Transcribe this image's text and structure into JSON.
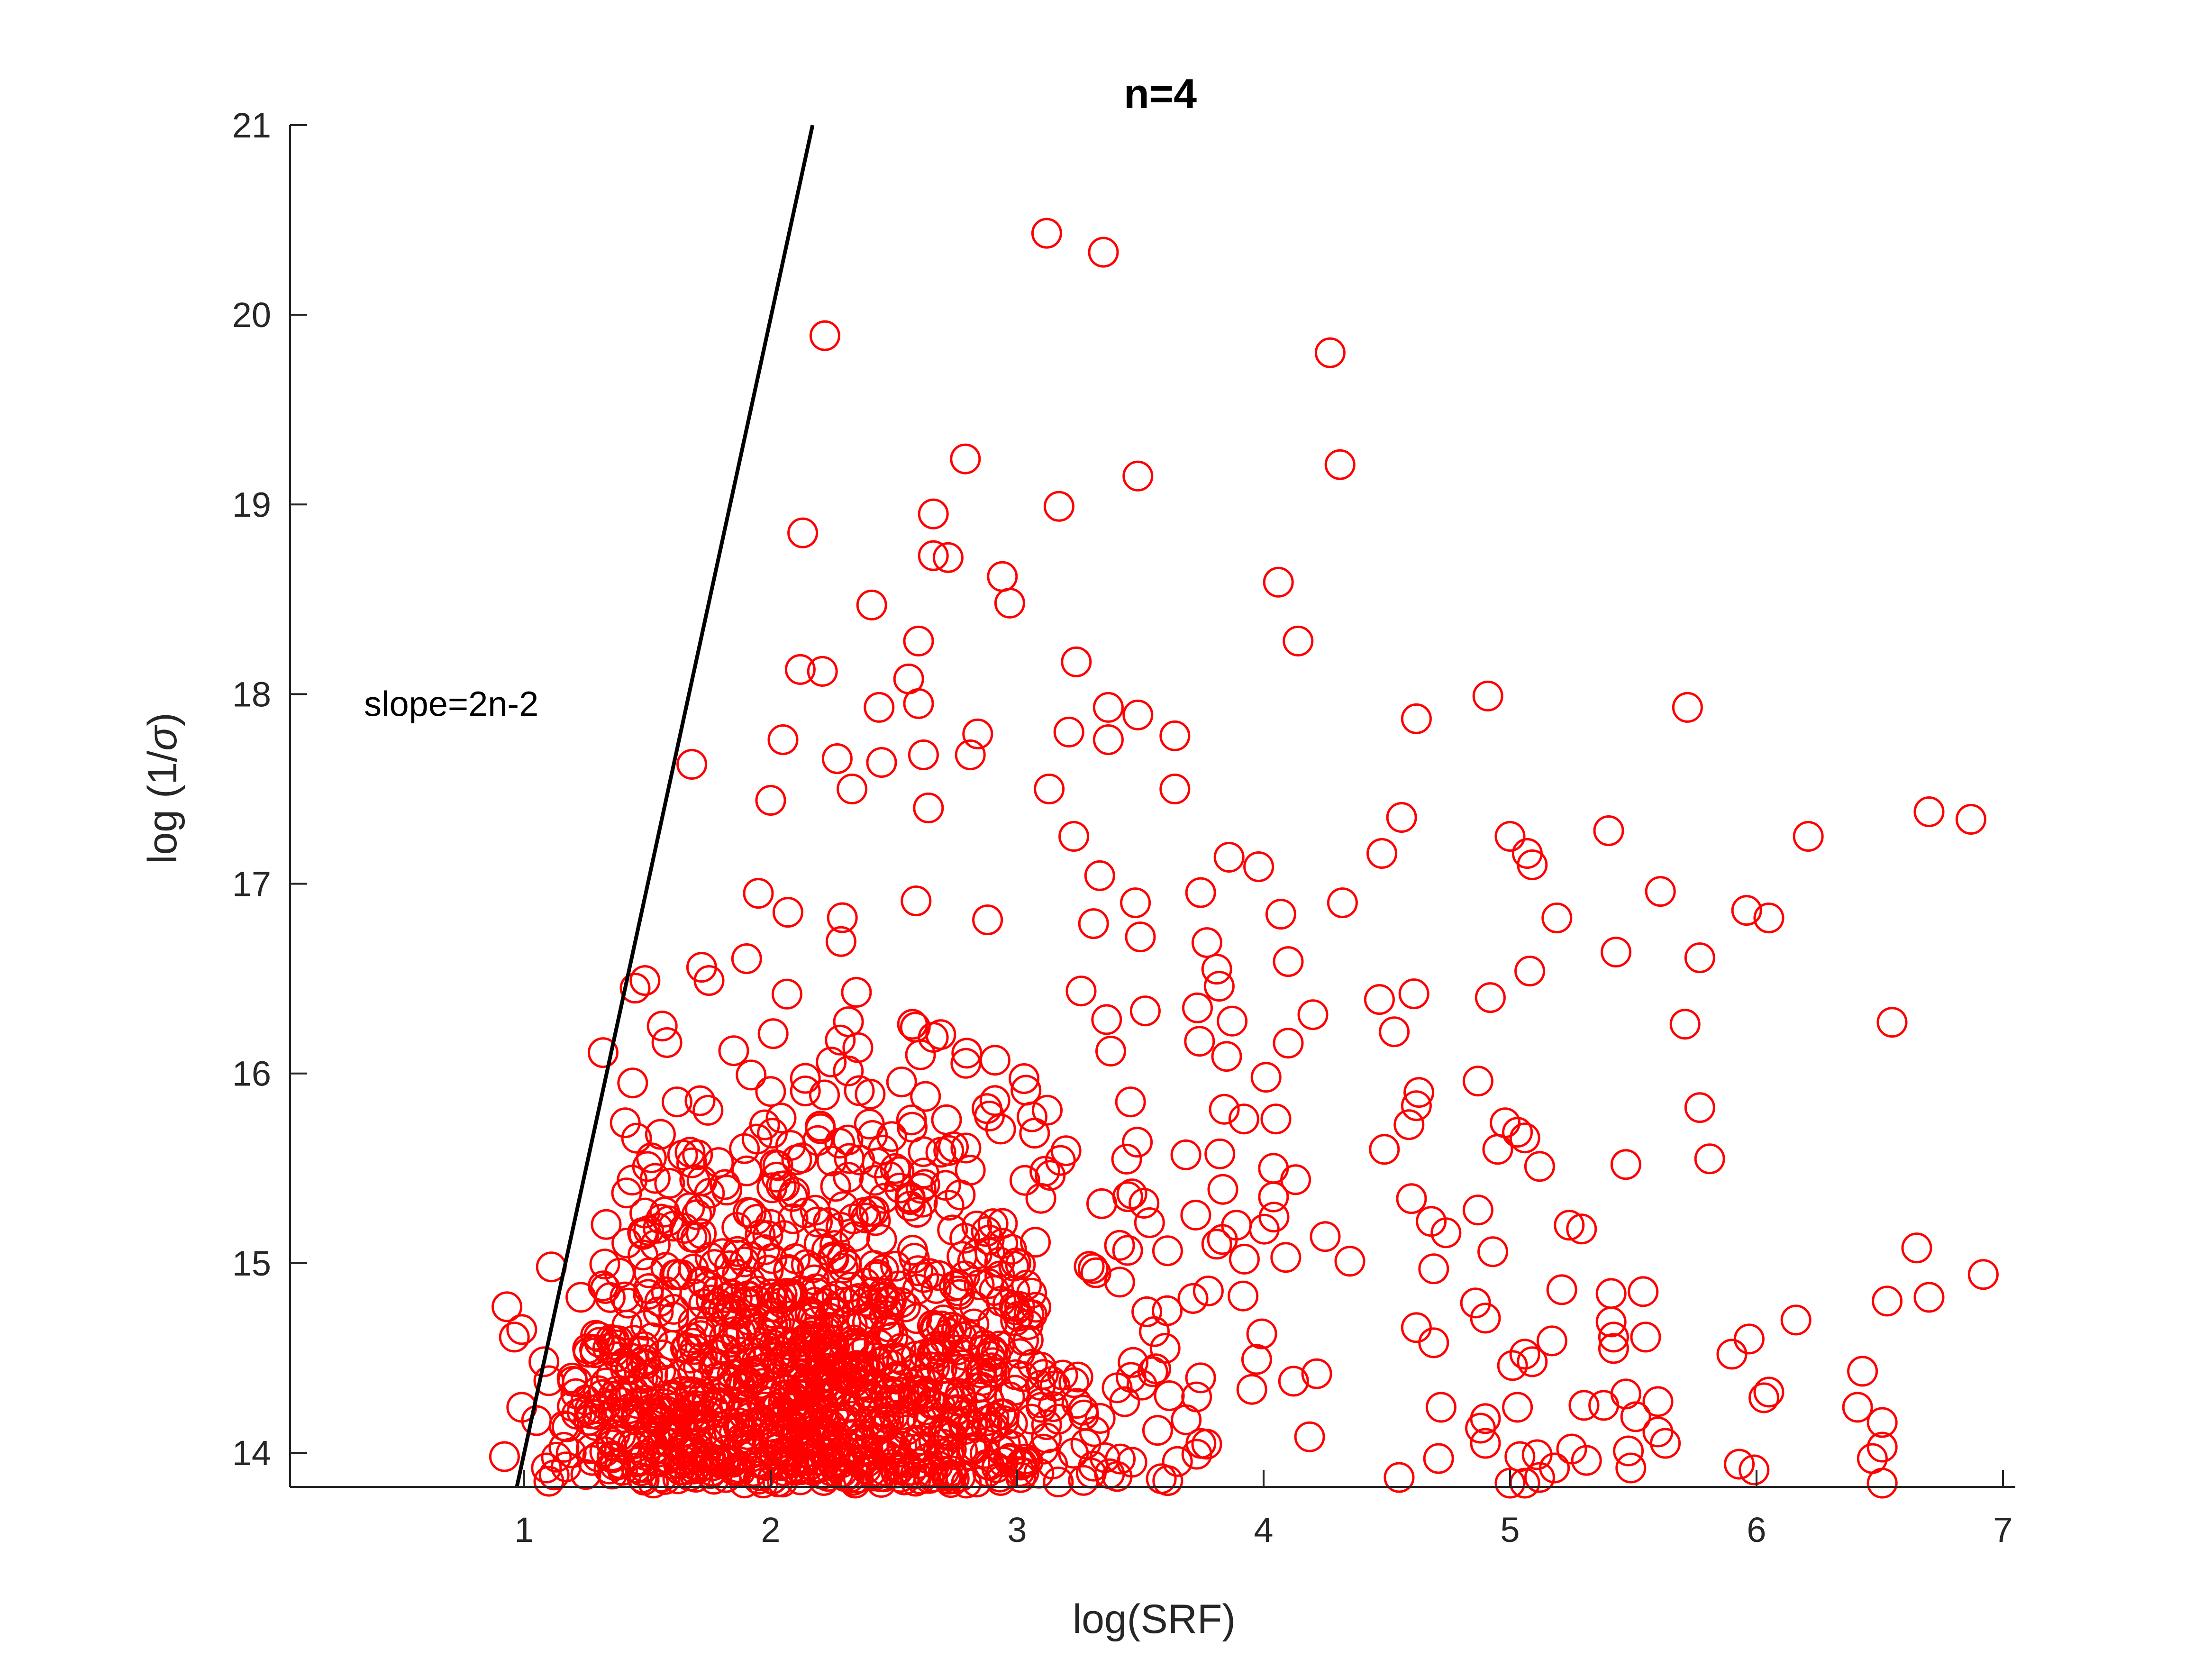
{
  "chart_data": {
    "type": "scatter",
    "title": "n=4",
    "xlabel": "log(SRF)",
    "ylabel_main": "log (1/",
    "ylabel_symbol": "σ",
    "ylabel_close": ")",
    "xlim": [
      0.05,
      7.05
    ],
    "ylim": [
      13.82,
      21
    ],
    "x_ticks": [
      1,
      2,
      3,
      4,
      5,
      6,
      7
    ],
    "y_ticks": [
      14,
      15,
      16,
      17,
      18,
      19,
      20,
      21
    ],
    "grid": false,
    "marker": "open-circle",
    "marker_color": "#ff0000",
    "reference_line": {
      "x": [
        0.97,
        2.17
      ],
      "y": [
        13.82,
        21
      ],
      "color": "#000000"
    },
    "annotation": {
      "text": "slope=2n-2",
      "x": 0.35,
      "y": 17.95
    },
    "sampled_point_count": 1400,
    "points": [
      [
        3.12,
        20.43
      ],
      [
        3.35,
        20.33
      ],
      [
        2.22,
        19.89
      ],
      [
        4.27,
        19.8
      ],
      [
        4.31,
        19.21
      ],
      [
        2.79,
        19.24
      ],
      [
        3.17,
        18.99
      ],
      [
        3.49,
        19.15
      ],
      [
        2.66,
        18.95
      ],
      [
        2.13,
        18.85
      ],
      [
        2.66,
        18.73
      ],
      [
        2.72,
        18.72
      ],
      [
        2.94,
        18.62
      ],
      [
        2.97,
        18.48
      ],
      [
        4.06,
        18.59
      ],
      [
        4.14,
        18.28
      ],
      [
        2.41,
        18.47
      ],
      [
        2.6,
        18.28
      ],
      [
        3.24,
        18.17
      ],
      [
        2.12,
        18.13
      ],
      [
        2.21,
        18.12
      ],
      [
        2.56,
        18.08
      ],
      [
        4.91,
        17.99
      ],
      [
        5.72,
        17.93
      ],
      [
        3.37,
        17.93
      ],
      [
        3.49,
        17.89
      ],
      [
        2.6,
        17.95
      ],
      [
        2.44,
        17.93
      ],
      [
        4.62,
        17.87
      ],
      [
        2.05,
        17.76
      ],
      [
        3.21,
        17.8
      ],
      [
        3.37,
        17.76
      ],
      [
        3.64,
        17.78
      ],
      [
        2.84,
        17.79
      ],
      [
        2.81,
        17.68
      ],
      [
        1.68,
        17.63
      ],
      [
        2.62,
        17.68
      ],
      [
        2.27,
        17.66
      ],
      [
        2.45,
        17.64
      ],
      [
        3.13,
        17.5
      ],
      [
        3.64,
        17.5
      ],
      [
        2.33,
        17.5
      ],
      [
        2.0,
        17.44
      ],
      [
        6.7,
        17.38
      ],
      [
        6.87,
        17.34
      ],
      [
        4.56,
        17.35
      ],
      [
        2.64,
        17.4
      ],
      [
        5.4,
        17.28
      ],
      [
        6.21,
        17.25
      ],
      [
        5.0,
        17.25
      ],
      [
        3.23,
        17.25
      ],
      [
        4.48,
        17.16
      ],
      [
        5.07,
        17.16
      ],
      [
        5.09,
        17.1
      ],
      [
        3.86,
        17.14
      ],
      [
        3.98,
        17.09
      ],
      [
        4.32,
        16.9
      ],
      [
        5.61,
        16.96
      ],
      [
        5.96,
        16.86
      ],
      [
        6.05,
        16.82
      ],
      [
        5.19,
        16.82
      ],
      [
        3.48,
        16.9
      ],
      [
        2.59,
        16.91
      ],
      [
        2.88,
        16.81
      ],
      [
        3.31,
        16.79
      ],
      [
        1.95,
        16.95
      ],
      [
        2.07,
        16.85
      ],
      [
        4.07,
        16.84
      ],
      [
        3.5,
        16.72
      ],
      [
        3.77,
        16.69
      ],
      [
        3.81,
        16.55
      ],
      [
        4.1,
        16.59
      ],
      [
        5.08,
        16.54
      ],
      [
        5.43,
        16.64
      ],
      [
        5.77,
        16.61
      ],
      [
        4.61,
        16.42
      ],
      [
        4.92,
        16.4
      ],
      [
        4.47,
        16.39
      ],
      [
        1.45,
        16.45
      ],
      [
        1.49,
        16.49
      ],
      [
        1.72,
        16.56
      ],
      [
        1.75,
        16.49
      ],
      [
        3.82,
        16.46
      ],
      [
        3.52,
        16.33
      ],
      [
        4.2,
        16.31
      ],
      [
        4.53,
        16.22
      ],
      [
        5.71,
        16.26
      ],
      [
        6.55,
        16.27
      ],
      [
        1.56,
        16.25
      ],
      [
        1.32,
        16.11
      ],
      [
        4.1,
        16.16
      ],
      [
        3.74,
        16.17
      ],
      [
        3.85,
        16.09
      ],
      [
        2.01,
        16.21
      ],
      [
        1.85,
        16.12
      ],
      [
        1.62,
        15.85
      ],
      [
        4.01,
        15.98
      ],
      [
        4.87,
        15.96
      ],
      [
        4.63,
        15.9
      ],
      [
        4.62,
        15.83
      ],
      [
        5.77,
        15.82
      ],
      [
        4.59,
        15.73
      ],
      [
        4.98,
        15.74
      ],
      [
        5.03,
        15.69
      ],
      [
        5.06,
        15.66
      ],
      [
        4.49,
        15.6
      ],
      [
        4.95,
        15.6
      ],
      [
        5.81,
        15.55
      ],
      [
        5.47,
        15.52
      ],
      [
        5.12,
        15.51
      ],
      [
        1.44,
        15.95
      ],
      [
        1.41,
        15.74
      ],
      [
        3.46,
        15.85
      ],
      [
        3.92,
        15.76
      ],
      [
        4.05,
        15.76
      ],
      [
        4.04,
        15.5
      ],
      [
        4.13,
        15.44
      ],
      [
        4.6,
        15.34
      ],
      [
        4.87,
        15.28
      ],
      [
        4.68,
        15.22
      ],
      [
        4.74,
        15.16
      ],
      [
        4.93,
        15.06
      ],
      [
        4.69,
        14.97
      ],
      [
        5.24,
        15.2
      ],
      [
        5.29,
        15.18
      ],
      [
        3.89,
        15.2
      ],
      [
        3.81,
        15.1
      ],
      [
        4.25,
        15.14
      ],
      [
        4.35,
        15.01
      ],
      [
        4.09,
        15.03
      ],
      [
        6.65,
        15.08
      ],
      [
        6.92,
        14.94
      ],
      [
        6.53,
        14.8
      ],
      [
        6.7,
        14.82
      ],
      [
        5.21,
        14.86
      ],
      [
        5.54,
        14.85
      ],
      [
        5.41,
        14.84
      ],
      [
        4.86,
        14.79
      ],
      [
        4.9,
        14.71
      ],
      [
        5.41,
        14.69
      ],
      [
        5.42,
        14.61
      ],
      [
        5.55,
        14.61
      ],
      [
        5.17,
        14.59
      ],
      [
        6.16,
        14.7
      ],
      [
        5.97,
        14.6
      ],
      [
        5.9,
        14.52
      ],
      [
        4.62,
        14.66
      ],
      [
        4.69,
        14.58
      ],
      [
        0.93,
        14.77
      ],
      [
        0.96,
        14.61
      ],
      [
        0.99,
        14.65
      ],
      [
        1.11,
        14.98
      ],
      [
        1.08,
        14.48
      ],
      [
        1.1,
        14.38
      ],
      [
        1.26,
        14.53
      ],
      [
        1.23,
        14.82
      ],
      [
        1.32,
        14.88
      ],
      [
        5.01,
        14.46
      ],
      [
        5.06,
        14.52
      ],
      [
        5.09,
        14.48
      ],
      [
        5.42,
        14.55
      ],
      [
        6.43,
        14.43
      ],
      [
        6.05,
        14.32
      ],
      [
        6.03,
        14.29
      ],
      [
        5.6,
        14.27
      ],
      [
        5.47,
        14.31
      ],
      [
        5.3,
        14.25
      ],
      [
        5.38,
        14.25
      ],
      [
        5.51,
        14.19
      ],
      [
        5.03,
        14.24
      ],
      [
        4.9,
        14.18
      ],
      [
        4.72,
        14.24
      ],
      [
        6.41,
        14.24
      ],
      [
        6.51,
        14.16
      ],
      [
        0.99,
        14.24
      ],
      [
        1.05,
        14.17
      ],
      [
        5.6,
        14.11
      ],
      [
        5.63,
        14.05
      ],
      [
        5.48,
        14.01
      ],
      [
        5.11,
        13.99
      ],
      [
        5.18,
        13.92
      ],
      [
        5.04,
        13.98
      ],
      [
        4.9,
        14.05
      ],
      [
        4.88,
        14.13
      ],
      [
        6.47,
        13.97
      ],
      [
        6.51,
        14.03
      ],
      [
        6.51,
        13.84
      ],
      [
        5.93,
        13.94
      ],
      [
        5.99,
        13.91
      ],
      [
        5.49,
        13.92
      ],
      [
        5.25,
        14.02
      ],
      [
        5.31,
        13.96
      ],
      [
        5.0,
        13.84
      ],
      [
        5.06,
        13.84
      ],
      [
        5.12,
        13.87
      ],
      [
        0.92,
        13.98
      ],
      [
        1.1,
        13.85
      ],
      [
        1.09,
        13.92
      ],
      [
        4.71,
        13.97
      ],
      [
        4.55,
        13.87
      ]
    ]
  }
}
